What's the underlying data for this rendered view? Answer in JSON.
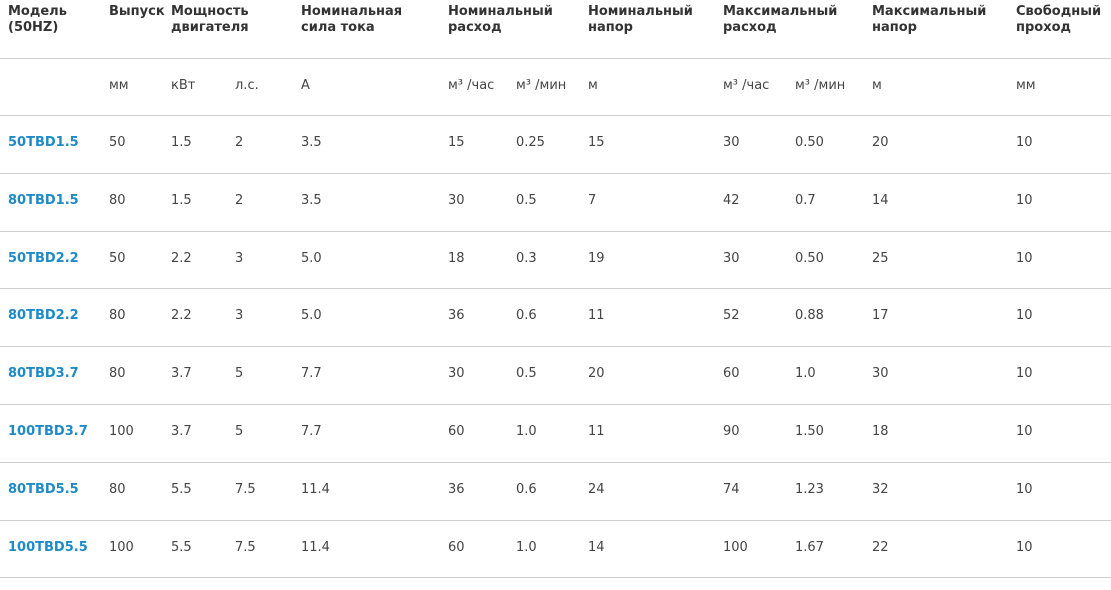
{
  "table": {
    "headers": [
      "Модель (50HZ)",
      "Выпуск",
      "Мощность двигателя",
      "Номинальная сила тока",
      "Номинальный расход",
      "Номинальный напор",
      "Максимальный расход",
      "Максимальный напор",
      "Свободный проход"
    ],
    "units": [
      "мм",
      "кВт",
      "л.с.",
      "А",
      "м³ /час",
      "м³ /мин",
      "м",
      "м³ /час",
      "м³ /мин",
      "м",
      "мм"
    ],
    "rows": [
      [
        "50TBD1.5",
        "50",
        "1.5",
        "2",
        "3.5",
        "15",
        "0.25",
        "15",
        "30",
        "0.50",
        "20",
        "10"
      ],
      [
        "80TBD1.5",
        "80",
        "1.5",
        "2",
        "3.5",
        "30",
        "0.5",
        "7",
        "42",
        "0.7",
        "14",
        "10"
      ],
      [
        "50TBD2.2",
        "50",
        "2.2",
        "3",
        "5.0",
        "18",
        "0.3",
        "19",
        "30",
        "0.50",
        "25",
        "10"
      ],
      [
        "80TBD2.2",
        "80",
        "2.2",
        "3",
        "5.0",
        "36",
        "0.6",
        "11",
        "52",
        "0.88",
        "17",
        "10"
      ],
      [
        "80TBD3.7",
        "80",
        "3.7",
        "5",
        "7.7",
        "30",
        "0.5",
        "20",
        "60",
        "1.0",
        "30",
        "10"
      ],
      [
        "100TBD3.7",
        "100",
        "3.7",
        "5",
        "7.7",
        "60",
        "1.0",
        "11",
        "90",
        "1.50",
        "18",
        "10"
      ],
      [
        "80TBD5.5",
        "80",
        "5.5",
        "7.5",
        "11.4",
        "36",
        "0.6",
        "24",
        "74",
        "1.23",
        "32",
        "10"
      ],
      [
        "100TBD5.5",
        "100",
        "5.5",
        "7.5",
        "11.4",
        "60",
        "1.0",
        "14",
        "100",
        "1.67",
        "22",
        "10"
      ]
    ]
  }
}
